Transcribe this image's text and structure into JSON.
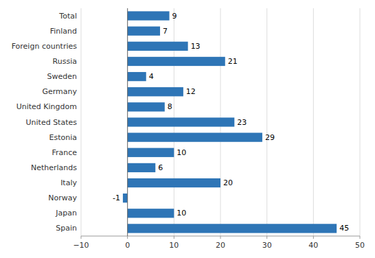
{
  "chart_data": {
    "type": "bar",
    "orientation": "horizontal",
    "categories": [
      "Spain",
      "Japan",
      "Norway",
      "Italy",
      "Netherlands",
      "France",
      "Estonia",
      "United States",
      "United Kingdom",
      "Germany",
      "Sweden",
      "Russia",
      "Foreign countries",
      "Finland",
      "Total"
    ],
    "values": [
      45,
      10,
      -1,
      20,
      6,
      10,
      29,
      23,
      8,
      12,
      4,
      21,
      13,
      7,
      9
    ],
    "color": "#2e75b6",
    "xlim": [
      -10,
      50
    ],
    "xticks": [
      {
        "value": -10,
        "label": "−10"
      },
      0,
      10,
      20,
      30,
      40,
      50
    ],
    "grid": true,
    "data_labels": true
  }
}
